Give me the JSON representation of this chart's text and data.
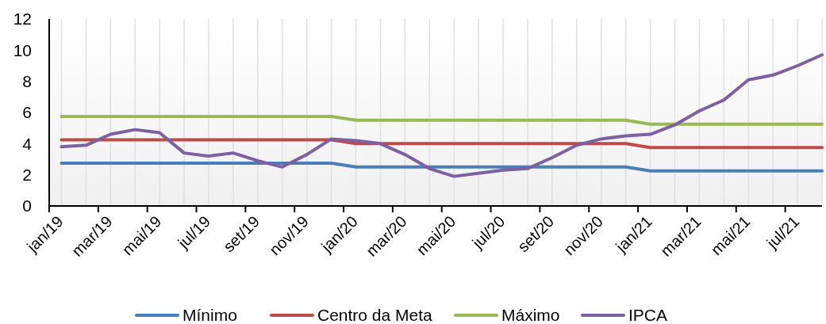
{
  "chart_data": {
    "type": "line",
    "categories": [
      "jan/19",
      null,
      "mar/19",
      null,
      "mai/19",
      null,
      "jul/19",
      null,
      "set/19",
      null,
      "nov/19",
      null,
      "jan/20",
      null,
      "mar/20",
      null,
      "mai/20",
      null,
      "jul/20",
      null,
      "set/20",
      null,
      "nov/20",
      null,
      "jan/21",
      null,
      "mar/21",
      null,
      "mai/21",
      null,
      "jul/21",
      null
    ],
    "series": [
      {
        "name": "Mínimo",
        "color": "#4a7ebb",
        "values": [
          2.75,
          2.75,
          2.75,
          2.75,
          2.75,
          2.75,
          2.75,
          2.75,
          2.75,
          2.75,
          2.75,
          2.75,
          2.5,
          2.5,
          2.5,
          2.5,
          2.5,
          2.5,
          2.5,
          2.5,
          2.5,
          2.5,
          2.5,
          2.5,
          2.25,
          2.25,
          2.25,
          2.25,
          2.25,
          2.25,
          2.25,
          2.25
        ]
      },
      {
        "name": "Centro da Meta",
        "color": "#be4b48",
        "values": [
          4.25,
          4.25,
          4.25,
          4.25,
          4.25,
          4.25,
          4.25,
          4.25,
          4.25,
          4.25,
          4.25,
          4.25,
          4,
          4,
          4,
          4,
          4,
          4,
          4,
          4,
          4,
          4,
          4,
          4,
          3.75,
          3.75,
          3.75,
          3.75,
          3.75,
          3.75,
          3.75,
          3.75
        ]
      },
      {
        "name": "Máximo",
        "color": "#98b954",
        "values": [
          5.75,
          5.75,
          5.75,
          5.75,
          5.75,
          5.75,
          5.75,
          5.75,
          5.75,
          5.75,
          5.75,
          5.75,
          5.5,
          5.5,
          5.5,
          5.5,
          5.5,
          5.5,
          5.5,
          5.5,
          5.5,
          5.5,
          5.5,
          5.5,
          5.25,
          5.25,
          5.25,
          5.25,
          5.25,
          5.25,
          5.25,
          5.25
        ]
      },
      {
        "name": "IPCA",
        "color": "#7d60a0",
        "values": [
          3.8,
          3.9,
          4.6,
          4.9,
          4.7,
          3.4,
          3.2,
          3.4,
          2.9,
          2.5,
          3.3,
          4.3,
          4.2,
          4.0,
          3.3,
          2.4,
          1.9,
          2.1,
          2.3,
          2.4,
          3.1,
          3.9,
          4.3,
          4.5,
          4.6,
          5.2,
          6.1,
          6.8,
          8.1,
          8.4,
          9.0,
          9.7
        ]
      }
    ],
    "ylim": [
      0,
      12
    ],
    "yticks": [
      0,
      2,
      4,
      6,
      8,
      10,
      12
    ],
    "grid": "x",
    "legend": "bottom"
  }
}
